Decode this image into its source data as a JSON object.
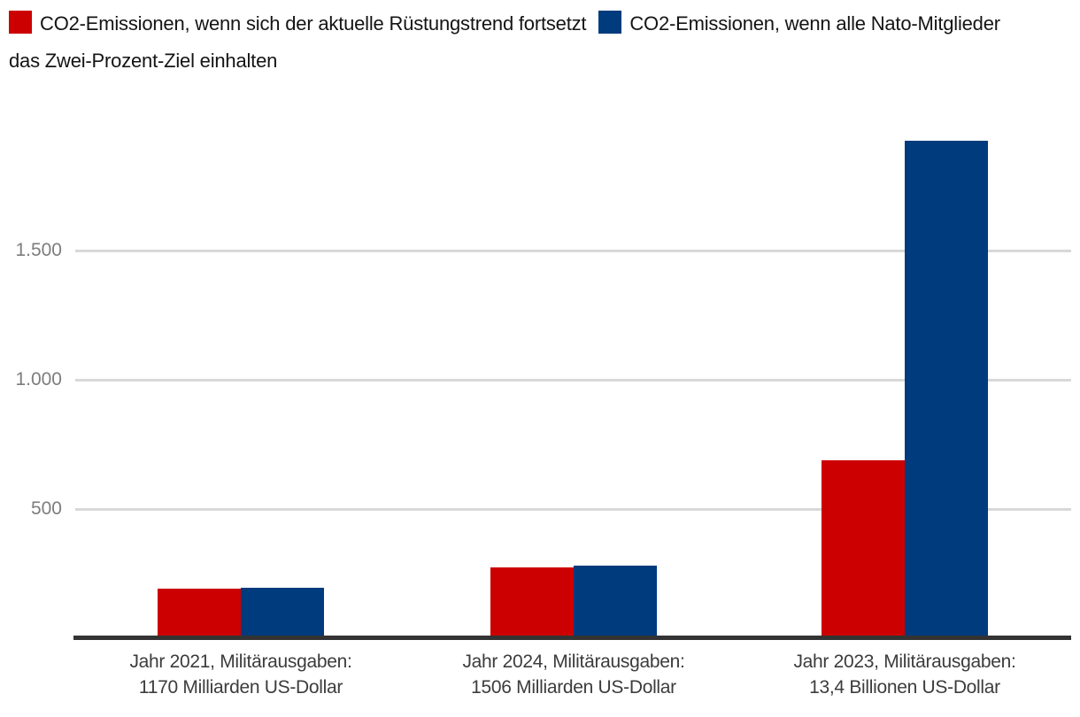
{
  "colors": {
    "red": "#cc0001",
    "blue": "#003b7d",
    "gridline": "#d8d8d8",
    "axis_baseline": "#333333",
    "tick_label": "#7d7d7d",
    "category_label": "#3c3c3c",
    "legend_text": "#141414",
    "background": "#ffffff"
  },
  "legend": {
    "items": [
      {
        "id": "trend",
        "color": "#cc0001",
        "label": "CO2-Emissionen, wenn sich der aktuelle Rüstungstrend fortsetzt"
      },
      {
        "id": "two-percent",
        "color": "#003b7d",
        "label": "CO2-Emissionen, wenn alle Nato-Mitglieder das Zwei-Prozent-Ziel einhalten"
      }
    ]
  },
  "chart_data": {
    "type": "bar",
    "title": "",
    "legend_position": "top",
    "grid": true,
    "categories": [
      {
        "id": "2021",
        "label_lines": [
          "Jahr 2021, Militärausgaben:",
          "1170 Milliarden US-Dollar"
        ]
      },
      {
        "id": "2024",
        "label_lines": [
          "Jahr 2024, Militärausgaben:",
          "1506 Milliarden US-Dollar"
        ]
      },
      {
        "id": "2023",
        "label_lines": [
          "Jahr 2023, Militärausgaben:",
          "13,4 Billionen US-Dollar"
        ]
      }
    ],
    "series": [
      {
        "id": "trend",
        "name": "CO2-Emissionen, wenn sich der aktuelle Rüstungstrend fortsetzt",
        "color": "#cc0001",
        "values": [
          195,
          275,
          690
        ]
      },
      {
        "id": "two-percent",
        "name": "CO2-Emissionen, wenn alle Nato-Mitglieder das Zwei-Prozent-Ziel einhalten",
        "color": "#003b7d",
        "values": [
          196,
          281,
          1925
        ]
      }
    ],
    "y_axis": {
      "ticks": [
        {
          "value": 500,
          "label": "500"
        },
        {
          "value": 1000,
          "label": "1.000"
        },
        {
          "value": 1500,
          "label": "1.500"
        }
      ],
      "range": [
        0,
        2000
      ]
    }
  }
}
